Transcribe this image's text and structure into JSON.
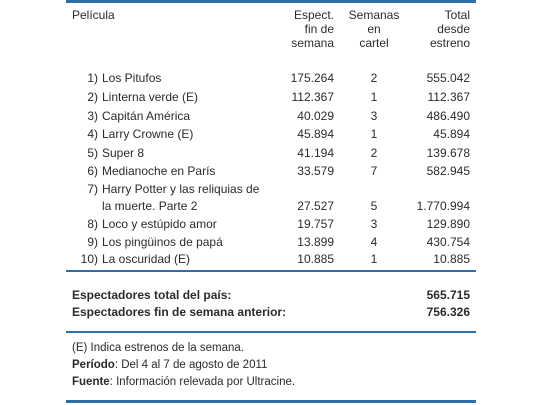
{
  "header": {
    "film": "Película",
    "esp1": "Espect.",
    "esp2": "fin de",
    "esp3": "semana",
    "sem1": "Semanas",
    "sem2": "en",
    "sem3": "cartel",
    "tot1": "Total",
    "tot2": "desde",
    "tot3": "estreno"
  },
  "rows": [
    {
      "num": "1)",
      "title": "Los Pitufos",
      "esp": "175.264",
      "sem": "2",
      "tot": "555.042"
    },
    {
      "num": "2)",
      "title": "Linterna verde (E)",
      "esp": "112.367",
      "sem": "1",
      "tot": "112.367"
    },
    {
      "num": "3)",
      "title": "Capitán América",
      "esp": "40.029",
      "sem": "3",
      "tot": "486.490"
    },
    {
      "num": "4)",
      "title": "Larry Crowne (E)",
      "esp": "45.894",
      "sem": "1",
      "tot": "45.894"
    },
    {
      "num": "5)",
      "title": "Super 8",
      "esp": "41.194",
      "sem": "2",
      "tot": "139.678"
    },
    {
      "num": "6)",
      "title": "Medianoche en París",
      "esp": "33.579",
      "sem": "7",
      "tot": "582.945"
    },
    {
      "num": "7)",
      "title": "Harry Potter y las reliquias de",
      "title2": "la muerte. Parte 2",
      "esp": "27.527",
      "sem": "5",
      "tot": "1.770.994"
    },
    {
      "num": "8)",
      "title": "Loco y estúpido amor",
      "esp": "19.757",
      "sem": "3",
      "tot": "129.890"
    },
    {
      "num": "9)",
      "title": "Los pingüinos de papá",
      "esp": "13.899",
      "sem": "4",
      "tot": "430.754"
    },
    {
      "num": "10)",
      "title": "La oscuridad (E)",
      "esp": "10.885",
      "sem": "1",
      "tot": "10.885"
    }
  ],
  "summary": {
    "total_label": "Espectadores total del país:",
    "total_value": "565.715",
    "prev_label": "Espectadores fin de semana anterior:",
    "prev_value": "756.326"
  },
  "notes": {
    "e_label": "(E)",
    "e_text": " Indica estrenos de la semana.",
    "period_label": "Período",
    "period_text": ": Del 4 al 7 de agosto de 2011",
    "source_label": "Fuente",
    "source_text": ": Información relevada por Ultracine."
  },
  "colors": {
    "rule": "#2f6ea6",
    "text": "#2b2b2b"
  }
}
